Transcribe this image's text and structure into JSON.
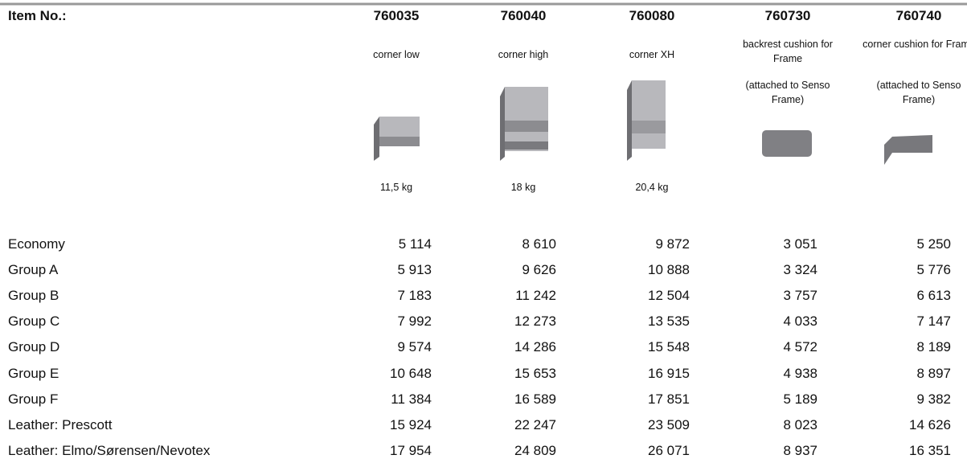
{
  "header": {
    "label": "Item No.:"
  },
  "columns": [
    {
      "item": "760035",
      "desc": "corner low",
      "weight": "11,5 kg"
    },
    {
      "item": "760040",
      "desc": "corner high",
      "weight": "18 kg"
    },
    {
      "item": "760080",
      "desc": "corner XH",
      "weight": "20,4 kg"
    },
    {
      "item": "760730",
      "desc": "backrest cushion for Frame",
      "note": "(attached to Senso Frame)"
    },
    {
      "item": "760740",
      "desc": "corner cushion for Frame",
      "note": "(attached to Senso Frame)"
    }
  ],
  "rows": [
    {
      "label": "Economy",
      "values": [
        "5 114",
        "8 610",
        "9 872",
        "3 051",
        "5 250"
      ]
    },
    {
      "label": "Group A",
      "values": [
        "5 913",
        "9 626",
        "10 888",
        "3 324",
        "5 776"
      ]
    },
    {
      "label": "Group B",
      "values": [
        "7 183",
        "11 242",
        "12 504",
        "3 757",
        "6 613"
      ]
    },
    {
      "label": "Group C",
      "values": [
        "7 992",
        "12 273",
        "13 535",
        "4 033",
        "7 147"
      ]
    },
    {
      "label": "Group D",
      "values": [
        "9 574",
        "14 286",
        "15 548",
        "4 572",
        "8 189"
      ]
    },
    {
      "label": "Group E",
      "values": [
        "10 648",
        "15 653",
        "16 915",
        "4 938",
        "8 897"
      ]
    },
    {
      "label": "Group F",
      "values": [
        "11 384",
        "16 589",
        "17 851",
        "5 189",
        "9 382"
      ]
    },
    {
      "label": "Leather: Prescott",
      "values": [
        "15 924",
        "22 247",
        "23 509",
        "8 023",
        "14 626"
      ]
    },
    {
      "label": "Leather: Elmo/Sørensen/Nevotex",
      "values": [
        "17 954",
        "24 809",
        "26 071",
        "8 937",
        "16 351"
      ]
    }
  ]
}
